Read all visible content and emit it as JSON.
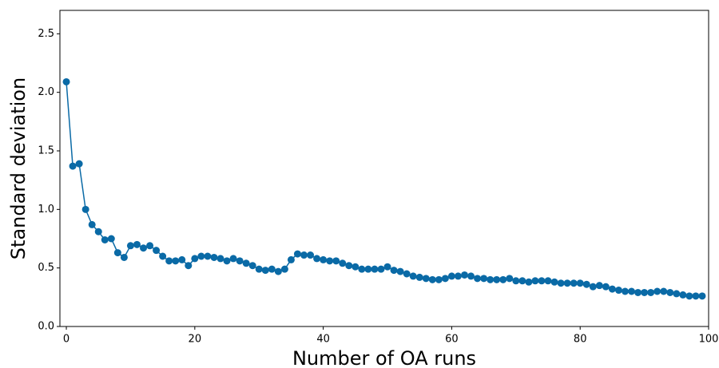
{
  "chart_data": {
    "type": "line",
    "xlabel": "Number of OA runs",
    "ylabel": "Standard deviation",
    "x": [
      0,
      1,
      2,
      3,
      4,
      5,
      6,
      7,
      8,
      9,
      10,
      11,
      12,
      13,
      14,
      15,
      16,
      17,
      18,
      19,
      20,
      21,
      22,
      23,
      24,
      25,
      26,
      27,
      28,
      29,
      30,
      31,
      32,
      33,
      34,
      35,
      36,
      37,
      38,
      39,
      40,
      41,
      42,
      43,
      44,
      45,
      46,
      47,
      48,
      49,
      50,
      51,
      52,
      53,
      54,
      55,
      56,
      57,
      58,
      59,
      60,
      61,
      62,
      63,
      64,
      65,
      66,
      67,
      68,
      69,
      70,
      71,
      72,
      73,
      74,
      75,
      76,
      77,
      78,
      79,
      80,
      81,
      82,
      83,
      84,
      85,
      86,
      87,
      88,
      89,
      90,
      91,
      92,
      93,
      94,
      95,
      96,
      97,
      98,
      99
    ],
    "series": [
      {
        "name": "Standard deviation",
        "color": "#0a6aa6",
        "values": [
          2.09,
          1.37,
          1.39,
          1.0,
          0.87,
          0.81,
          0.74,
          0.75,
          0.63,
          0.59,
          0.69,
          0.7,
          0.67,
          0.69,
          0.65,
          0.6,
          0.56,
          0.56,
          0.57,
          0.52,
          0.58,
          0.6,
          0.6,
          0.59,
          0.58,
          0.56,
          0.58,
          0.56,
          0.54,
          0.52,
          0.49,
          0.48,
          0.49,
          0.47,
          0.49,
          0.57,
          0.62,
          0.61,
          0.61,
          0.58,
          0.57,
          0.56,
          0.56,
          0.54,
          0.52,
          0.51,
          0.49,
          0.49,
          0.49,
          0.49,
          0.51,
          0.48,
          0.47,
          0.45,
          0.43,
          0.42,
          0.41,
          0.4,
          0.4,
          0.41,
          0.43,
          0.43,
          0.44,
          0.43,
          0.41,
          0.41,
          0.4,
          0.4,
          0.4,
          0.41,
          0.39,
          0.39,
          0.38,
          0.39,
          0.39,
          0.39,
          0.38,
          0.37,
          0.37,
          0.37,
          0.37,
          0.36,
          0.34,
          0.35,
          0.34,
          0.32,
          0.31,
          0.3,
          0.3,
          0.29,
          0.29,
          0.29,
          0.3,
          0.3,
          0.29,
          0.28,
          0.27,
          0.26,
          0.26,
          0.26
        ]
      }
    ],
    "xlim": [
      -1,
      100
    ],
    "ylim": [
      0,
      2.7
    ],
    "xticks": [
      0,
      20,
      40,
      60,
      80,
      100
    ],
    "yticks": [
      {
        "value": 0,
        "label": "0.0"
      },
      {
        "value": 0.5,
        "label": "0.5"
      },
      {
        "value": 1,
        "label": "1.0"
      },
      {
        "value": 1.5,
        "label": "1.5"
      },
      {
        "value": 2,
        "label": "2.0"
      },
      {
        "value": 2.5,
        "label": "2.5"
      }
    ]
  }
}
